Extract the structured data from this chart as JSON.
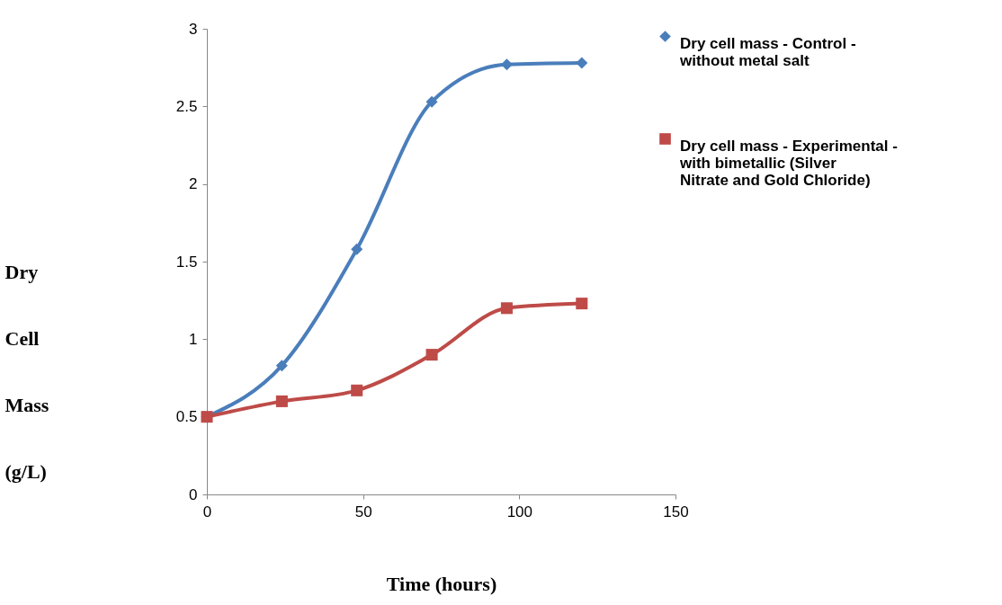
{
  "chart_data": {
    "type": "line",
    "xlabel": "Time (hours)",
    "ylabel": "Dry Cell Mass (g/L)",
    "xlim": [
      0,
      150
    ],
    "xticks": [
      0,
      50,
      100,
      150
    ],
    "ylim": [
      0,
      3
    ],
    "yticks": [
      0,
      0.5,
      1,
      1.5,
      2,
      2.5,
      3
    ],
    "grid": false,
    "legend": "right",
    "x": [
      0,
      24,
      48,
      72,
      96,
      120
    ],
    "series": [
      {
        "name": "Dry cell mass - Control - without metal salt",
        "color": "#4a7ebb",
        "marker": "diamond",
        "values": [
          0.5,
          0.83,
          1.58,
          2.53,
          2.77,
          2.78
        ]
      },
      {
        "name": "Dry cell mass - Experimental - with bimetallic  (Silver Nitrate and Gold Chloride)",
        "color": "#be4b48",
        "marker": "square",
        "values": [
          0.5,
          0.6,
          0.67,
          0.9,
          1.2,
          1.23
        ]
      }
    ]
  }
}
